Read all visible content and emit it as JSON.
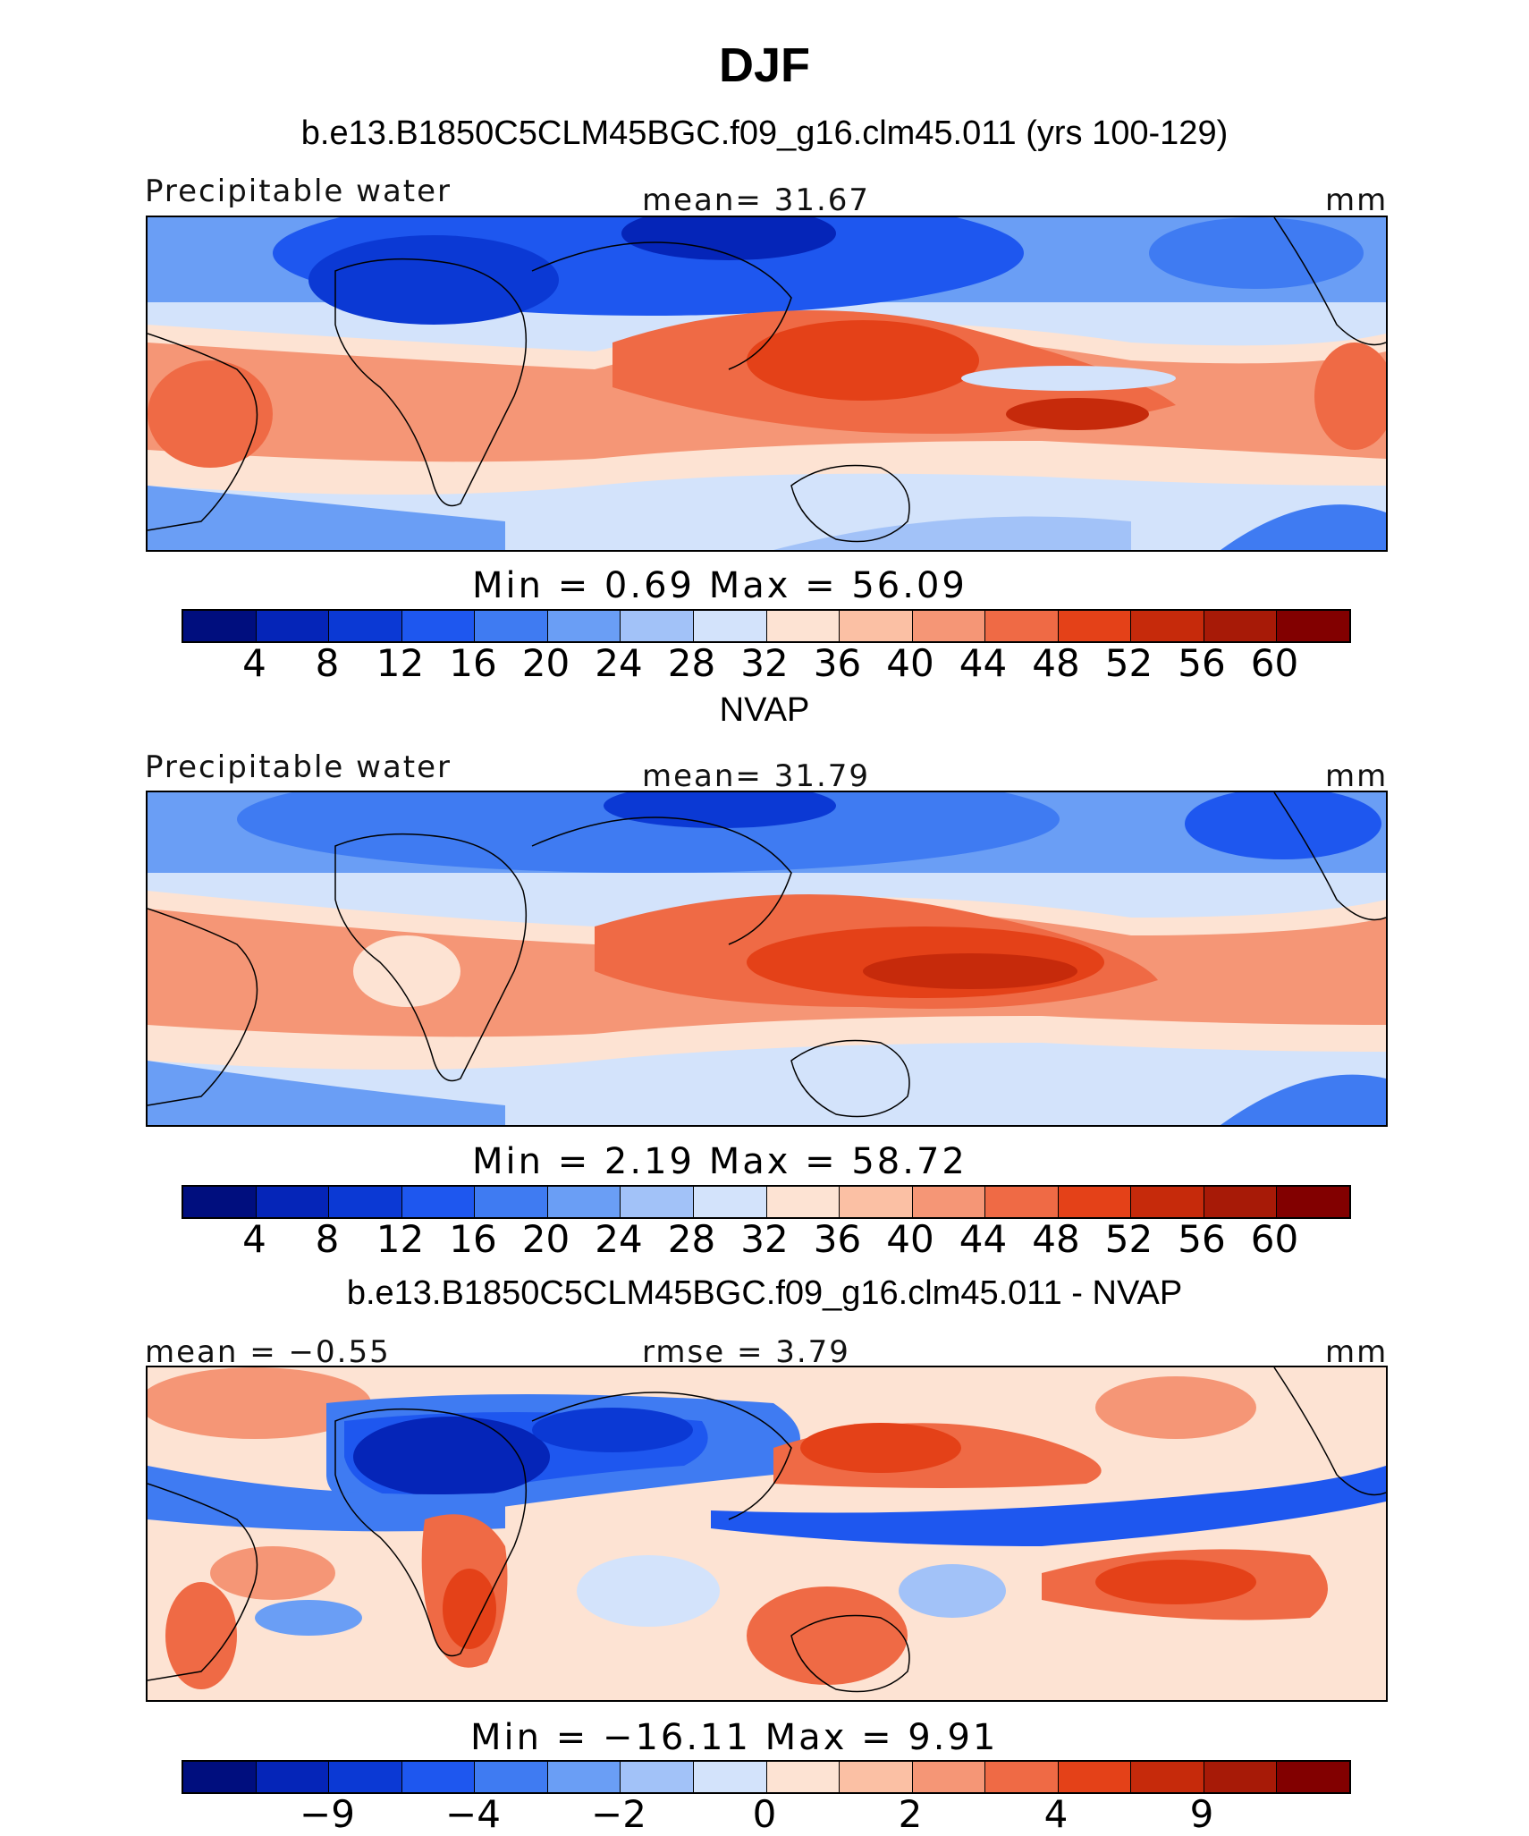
{
  "title": "DJF",
  "panels": [
    {
      "title": "b.e13.B1850C5CLM45BGC.f09_g16.clm45.011 (yrs 100-129)",
      "left_label": "Precipitable water",
      "center_label": "mean=   31.67",
      "right_label": "mm",
      "minmax": "Min  =    0.69  Max  =   56.09",
      "ticks": [
        "4",
        "8",
        "12",
        "16",
        "20",
        "24",
        "28",
        "32",
        "36",
        "40",
        "44",
        "48",
        "52",
        "56",
        "60"
      ]
    },
    {
      "title": "NVAP",
      "left_label": "Precipitable water",
      "center_label": "mean=   31.79",
      "right_label": "mm",
      "minmax": "Min  =    2.19  Max  =   58.72",
      "ticks": [
        "4",
        "8",
        "12",
        "16",
        "20",
        "24",
        "28",
        "32",
        "36",
        "40",
        "44",
        "48",
        "52",
        "56",
        "60"
      ]
    },
    {
      "title": "b.e13.B1850C5CLM45BGC.f09_g16.clm45.011 - NVAP",
      "left_label": "mean  =  −0.55",
      "center_label": "rmse  =    3.79",
      "right_label": "mm",
      "minmax": "Min  = −16.11  Max  =    9.91",
      "ticks": [
        "−9",
        "−4",
        "−2",
        "0",
        "2",
        "4",
        "9"
      ]
    }
  ],
  "colorbar_colors": [
    "#000e7e",
    "#0525b8",
    "#0b39d4",
    "#1e57ef",
    "#3f7bf2",
    "#6a9ef5",
    "#a2c2f8",
    "#d3e3fb",
    "#fde3d3",
    "#fbc0a4",
    "#f59676",
    "#ef6a45",
    "#e44118",
    "#c62a0b",
    "#a71a07",
    "#820000"
  ]
}
